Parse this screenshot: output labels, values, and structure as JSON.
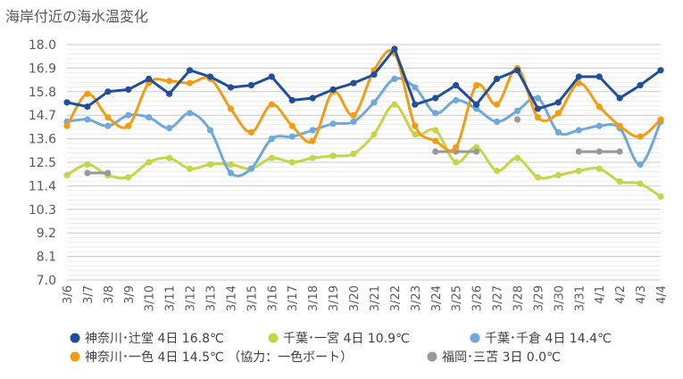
{
  "chart_data": {
    "type": "line",
    "title": "海岸付近の海水温変化",
    "xlabel": "",
    "ylabel": "",
    "ylim": [
      7.0,
      18.0
    ],
    "yticks": [
      "18.0",
      "16.9",
      "15.8",
      "14.7",
      "13.6",
      "12.5",
      "11.4",
      "10.3",
      "9.2",
      "8.1",
      "7.0"
    ],
    "grid": true,
    "legend_position": "bottom",
    "x": [
      "3/6",
      "3/7",
      "3/8",
      "3/9",
      "3/10",
      "3/11",
      "3/12",
      "3/13",
      "3/14",
      "3/15",
      "3/16",
      "3/17",
      "3/18",
      "3/19",
      "3/20",
      "3/21",
      "3/22",
      "3/23",
      "3/24",
      "3/25",
      "3/26",
      "3/27",
      "3/28",
      "3/29",
      "3/30",
      "3/31",
      "4/1",
      "4/2",
      "4/3",
      "4/4"
    ],
    "series": [
      {
        "name": "神奈川･辻堂 4日 16.8℃",
        "color": "#1f4e9b",
        "smooth": false,
        "points": [
          [
            0,
            15.3
          ],
          [
            1,
            15.1
          ],
          [
            2,
            15.8
          ],
          [
            3,
            15.9
          ],
          [
            4,
            16.4
          ],
          [
            5,
            15.7
          ],
          [
            6,
            16.8
          ],
          [
            7,
            16.5
          ],
          [
            8,
            16.0
          ],
          [
            9,
            16.1
          ],
          [
            10,
            16.5
          ],
          [
            11,
            15.4
          ],
          [
            12,
            15.5
          ],
          [
            13,
            15.9
          ],
          [
            14,
            16.2
          ],
          [
            15,
            16.6
          ],
          [
            16,
            17.8
          ],
          [
            17,
            15.2
          ],
          [
            18,
            15.5
          ],
          [
            19,
            16.1
          ],
          [
            20,
            15.2
          ],
          [
            21,
            16.4
          ],
          [
            22,
            16.8
          ],
          [
            23,
            15.0
          ],
          [
            24,
            15.3
          ],
          [
            25,
            16.5
          ],
          [
            26,
            16.5
          ],
          [
            27,
            15.5
          ],
          [
            28,
            16.1
          ],
          [
            29,
            16.8
          ]
        ]
      },
      {
        "name": "千葉･一宮 4日 10.9℃",
        "color": "#c5d547",
        "smooth": true,
        "points": [
          [
            0,
            11.9
          ],
          [
            1,
            12.4
          ],
          [
            2,
            11.9
          ],
          [
            3,
            11.8
          ],
          [
            4,
            12.5
          ],
          [
            5,
            12.7
          ],
          [
            6,
            12.2
          ],
          [
            7,
            12.4
          ],
          [
            8,
            12.4
          ],
          [
            9,
            12.2
          ],
          [
            10,
            12.7
          ],
          [
            11,
            12.5
          ],
          [
            12,
            12.7
          ],
          [
            13,
            12.8
          ],
          [
            14,
            12.9
          ],
          [
            15,
            13.8
          ],
          [
            16,
            15.2
          ],
          [
            17,
            13.8
          ],
          [
            18,
            14.0
          ],
          [
            19,
            12.5
          ],
          [
            20,
            13.2
          ],
          [
            21,
            12.1
          ],
          [
            22,
            12.7
          ],
          [
            23,
            11.8
          ],
          [
            24,
            11.9
          ],
          [
            25,
            12.1
          ],
          [
            26,
            12.2
          ],
          [
            27,
            11.6
          ],
          [
            28,
            11.5
          ],
          [
            29,
            10.9
          ]
        ]
      },
      {
        "name": "千葉･千倉 4日 14.4℃",
        "color": "#6fa8dc",
        "smooth": true,
        "points": [
          [
            0,
            14.4
          ],
          [
            1,
            14.5
          ],
          [
            2,
            14.2
          ],
          [
            3,
            14.7
          ],
          [
            4,
            14.6
          ],
          [
            5,
            14.1
          ],
          [
            6,
            14.8
          ],
          [
            7,
            14.0
          ],
          [
            8,
            12.0
          ],
          [
            9,
            12.2
          ],
          [
            10,
            13.6
          ],
          [
            11,
            13.7
          ],
          [
            12,
            14.0
          ],
          [
            13,
            14.3
          ],
          [
            14,
            14.4
          ],
          [
            15,
            15.3
          ],
          [
            16,
            16.4
          ],
          [
            17,
            16.0
          ],
          [
            18,
            14.8
          ],
          [
            19,
            15.4
          ],
          [
            20,
            15.0
          ],
          [
            21,
            14.4
          ],
          [
            22,
            14.9
          ],
          [
            23,
            15.5
          ],
          [
            24,
            13.9
          ],
          [
            25,
            14.0
          ],
          [
            26,
            14.2
          ],
          [
            27,
            14.1
          ],
          [
            28,
            12.4
          ],
          [
            29,
            14.4
          ]
        ]
      },
      {
        "name": "神奈川･一色 4日 14.5℃ （協力：一色ボート）",
        "color": "#f39c12",
        "smooth": true,
        "points": [
          [
            0,
            14.2
          ],
          [
            1,
            15.7
          ],
          [
            2,
            14.6
          ],
          [
            3,
            14.2
          ],
          [
            4,
            16.2
          ],
          [
            5,
            16.3
          ],
          [
            6,
            16.2
          ],
          [
            7,
            16.4
          ],
          [
            8,
            15.0
          ],
          [
            9,
            13.9
          ],
          [
            10,
            15.2
          ],
          [
            11,
            14.2
          ],
          [
            12,
            13.5
          ],
          [
            13,
            15.8
          ],
          [
            14,
            14.7
          ],
          [
            15,
            16.8
          ],
          [
            16,
            17.6
          ],
          [
            17,
            14.2
          ],
          [
            18,
            13.5
          ],
          [
            19,
            13.2
          ],
          [
            20,
            16.1
          ],
          [
            21,
            15.2
          ],
          [
            22,
            16.9
          ],
          [
            23,
            14.6
          ],
          [
            24,
            14.8
          ],
          [
            25,
            16.2
          ],
          [
            26,
            15.1
          ],
          [
            27,
            14.2
          ],
          [
            28,
            13.7
          ],
          [
            29,
            14.5
          ]
        ]
      },
      {
        "name": "福岡･三苫 3日 0.0℃",
        "color": "#999999",
        "smooth": false,
        "segments": [
          [
            [
              1,
              12.0
            ],
            [
              2,
              12.0
            ]
          ],
          [
            [
              18,
              13.0
            ],
            [
              19,
              13.0
            ],
            [
              20,
              13.0
            ]
          ],
          [
            [
              22,
              14.5
            ]
          ],
          [
            [
              25,
              13.0
            ],
            [
              26,
              13.0
            ],
            [
              27,
              13.0
            ]
          ]
        ]
      }
    ]
  }
}
